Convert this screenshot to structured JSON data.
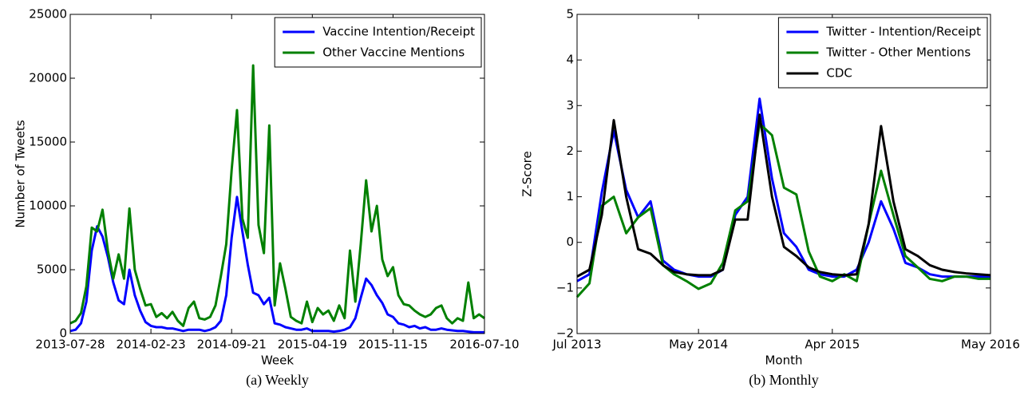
{
  "chart_data": [
    {
      "type": "line",
      "caption": "(a) Weekly",
      "xlabel": "Week",
      "ylabel": "Number of Tweets",
      "x": [
        "2013-07-28",
        "2013-08-11",
        "2013-08-25",
        "2013-09-08",
        "2013-09-22",
        "2013-10-06",
        "2013-10-20",
        "2013-11-03",
        "2013-11-17",
        "2013-12-01",
        "2013-12-15",
        "2013-12-29",
        "2014-01-12",
        "2014-01-26",
        "2014-02-09",
        "2014-02-23",
        "2014-03-09",
        "2014-03-23",
        "2014-04-06",
        "2014-04-20",
        "2014-05-04",
        "2014-05-18",
        "2014-06-01",
        "2014-06-15",
        "2014-06-29",
        "2014-07-13",
        "2014-07-27",
        "2014-08-10",
        "2014-08-24",
        "2014-09-07",
        "2014-09-21",
        "2014-10-05",
        "2014-10-19",
        "2014-11-02",
        "2014-11-16",
        "2014-11-30",
        "2014-12-14",
        "2014-12-28",
        "2015-01-11",
        "2015-01-25",
        "2015-02-08",
        "2015-02-22",
        "2015-03-08",
        "2015-03-22",
        "2015-04-05",
        "2015-04-19",
        "2015-05-03",
        "2015-05-17",
        "2015-05-31",
        "2015-06-14",
        "2015-06-28",
        "2015-07-12",
        "2015-07-26",
        "2015-08-09",
        "2015-08-23",
        "2015-09-06",
        "2015-09-20",
        "2015-10-04",
        "2015-10-18",
        "2015-11-01",
        "2015-11-15",
        "2015-11-29",
        "2015-12-13",
        "2015-12-27",
        "2016-01-10",
        "2016-01-24",
        "2016-02-07",
        "2016-02-21",
        "2016-03-06",
        "2016-03-20",
        "2016-04-03",
        "2016-04-17",
        "2016-05-01",
        "2016-05-15",
        "2016-05-29",
        "2016-06-12",
        "2016-06-26",
        "2016-07-10"
      ],
      "series": [
        {
          "name": "Vaccine Intention/Receipt",
          "color": "#0000ff",
          "values": [
            200,
            300,
            800,
            2500,
            6500,
            8400,
            7600,
            6000,
            4000,
            2600,
            2300,
            5000,
            3000,
            1800,
            900,
            600,
            500,
            500,
            400,
            400,
            300,
            200,
            300,
            300,
            300,
            200,
            300,
            500,
            1000,
            3000,
            7500,
            10700,
            8000,
            5400,
            3200,
            3000,
            2300,
            2800,
            800,
            700,
            500,
            400,
            300,
            300,
            400,
            200,
            200,
            200,
            200,
            150,
            200,
            300,
            500,
            1200,
            2800,
            4300,
            3800,
            3000,
            2400,
            1500,
            1300,
            800,
            700,
            500,
            600,
            400,
            500,
            300,
            300,
            400,
            300,
            250,
            200,
            200,
            150,
            100,
            100,
            100
          ]
        },
        {
          "name": "Other Vaccine Mentions",
          "color": "#008000",
          "values": [
            800,
            1000,
            1600,
            3700,
            8300,
            8000,
            9700,
            6500,
            4300,
            6200,
            4300,
            9800,
            5000,
            3500,
            2200,
            2300,
            1300,
            1600,
            1200,
            1700,
            1000,
            600,
            2000,
            2500,
            1200,
            1100,
            1300,
            2200,
            4500,
            7000,
            12800,
            17500,
            9000,
            7500,
            21000,
            8500,
            6300,
            16300,
            2200,
            5500,
            3500,
            1300,
            1000,
            800,
            2500,
            900,
            2000,
            1500,
            1800,
            1000,
            2200,
            1200,
            6500,
            2500,
            7000,
            12000,
            8000,
            10000,
            5800,
            4500,
            5200,
            3000,
            2300,
            2200,
            1800,
            1500,
            1300,
            1500,
            2000,
            2200,
            1200,
            800,
            1200,
            1000,
            4000,
            1200,
            1500,
            1200
          ]
        }
      ],
      "xlim": [
        "2013-07-28",
        "2016-07-10"
      ],
      "xticks": [
        "2013-07-28",
        "2014-02-23",
        "2014-09-21",
        "2015-04-19",
        "2015-11-15",
        "2016-07-10"
      ],
      "ylim": [
        0,
        25000
      ],
      "yticks": [
        0,
        5000,
        10000,
        15000,
        20000,
        25000
      ],
      "legend": "upper right"
    },
    {
      "type": "line",
      "caption": "(b) Monthly",
      "xlabel": "Month",
      "ylabel": "Z-Score",
      "x": [
        "2013-07",
        "2013-08",
        "2013-09",
        "2013-10",
        "2013-11",
        "2013-12",
        "2014-01",
        "2014-02",
        "2014-03",
        "2014-04",
        "2014-05",
        "2014-06",
        "2014-07",
        "2014-08",
        "2014-09",
        "2014-10",
        "2014-11",
        "2014-12",
        "2015-01",
        "2015-02",
        "2015-03",
        "2015-04",
        "2015-05",
        "2015-06",
        "2015-07",
        "2015-08",
        "2015-09",
        "2015-10",
        "2015-11",
        "2015-12",
        "2016-01",
        "2016-02",
        "2016-03",
        "2016-04",
        "2016-05"
      ],
      "series": [
        {
          "name": "Twitter - Intention/Receipt",
          "color": "#0000ff",
          "values": [
            -0.85,
            -0.7,
            1.1,
            2.45,
            1.15,
            0.55,
            0.9,
            -0.4,
            -0.6,
            -0.7,
            -0.75,
            -0.75,
            -0.6,
            0.6,
            1.0,
            3.15,
            1.4,
            0.2,
            -0.1,
            -0.6,
            -0.7,
            -0.75,
            -0.75,
            -0.6,
            0.0,
            0.9,
            0.3,
            -0.45,
            -0.55,
            -0.7,
            -0.75,
            -0.75,
            -0.75,
            -0.75,
            -0.75
          ]
        },
        {
          "name": "Twitter - Other Mentions",
          "color": "#008000",
          "values": [
            -1.2,
            -0.9,
            0.8,
            1.0,
            0.2,
            0.55,
            0.75,
            -0.5,
            -0.7,
            -0.85,
            -1.02,
            -0.9,
            -0.45,
            0.7,
            0.9,
            2.6,
            2.35,
            1.2,
            1.05,
            -0.2,
            -0.75,
            -0.85,
            -0.7,
            -0.85,
            0.4,
            1.57,
            0.6,
            -0.3,
            -0.55,
            -0.8,
            -0.85,
            -0.75,
            -0.75,
            -0.8,
            -0.8
          ]
        },
        {
          "name": "CDC",
          "color": "#000000",
          "values": [
            -0.75,
            -0.6,
            0.6,
            2.68,
            1.0,
            -0.15,
            -0.25,
            -0.5,
            -0.65,
            -0.7,
            -0.72,
            -0.72,
            -0.6,
            0.5,
            0.5,
            2.8,
            1.0,
            -0.1,
            -0.3,
            -0.55,
            -0.65,
            -0.7,
            -0.72,
            -0.7,
            0.4,
            2.55,
            0.9,
            -0.15,
            -0.3,
            -0.5,
            -0.6,
            -0.65,
            -0.68,
            -0.7,
            -0.72
          ]
        }
      ],
      "xlim": [
        "2013-07",
        "2016-05"
      ],
      "xticks": [
        {
          "value": "2013-07",
          "label": "Jul 2013"
        },
        {
          "value": "2014-05",
          "label": "May 2014"
        },
        {
          "value": "2015-04",
          "label": "Apr 2015"
        },
        {
          "value": "2016-05",
          "label": "May 2016"
        }
      ],
      "ylim": [
        -2,
        5
      ],
      "yticks": [
        {
          "value": -2,
          "label": "−2"
        },
        {
          "value": -1,
          "label": "−1"
        },
        0,
        1,
        2,
        3,
        4,
        5
      ],
      "legend": "upper right"
    }
  ]
}
